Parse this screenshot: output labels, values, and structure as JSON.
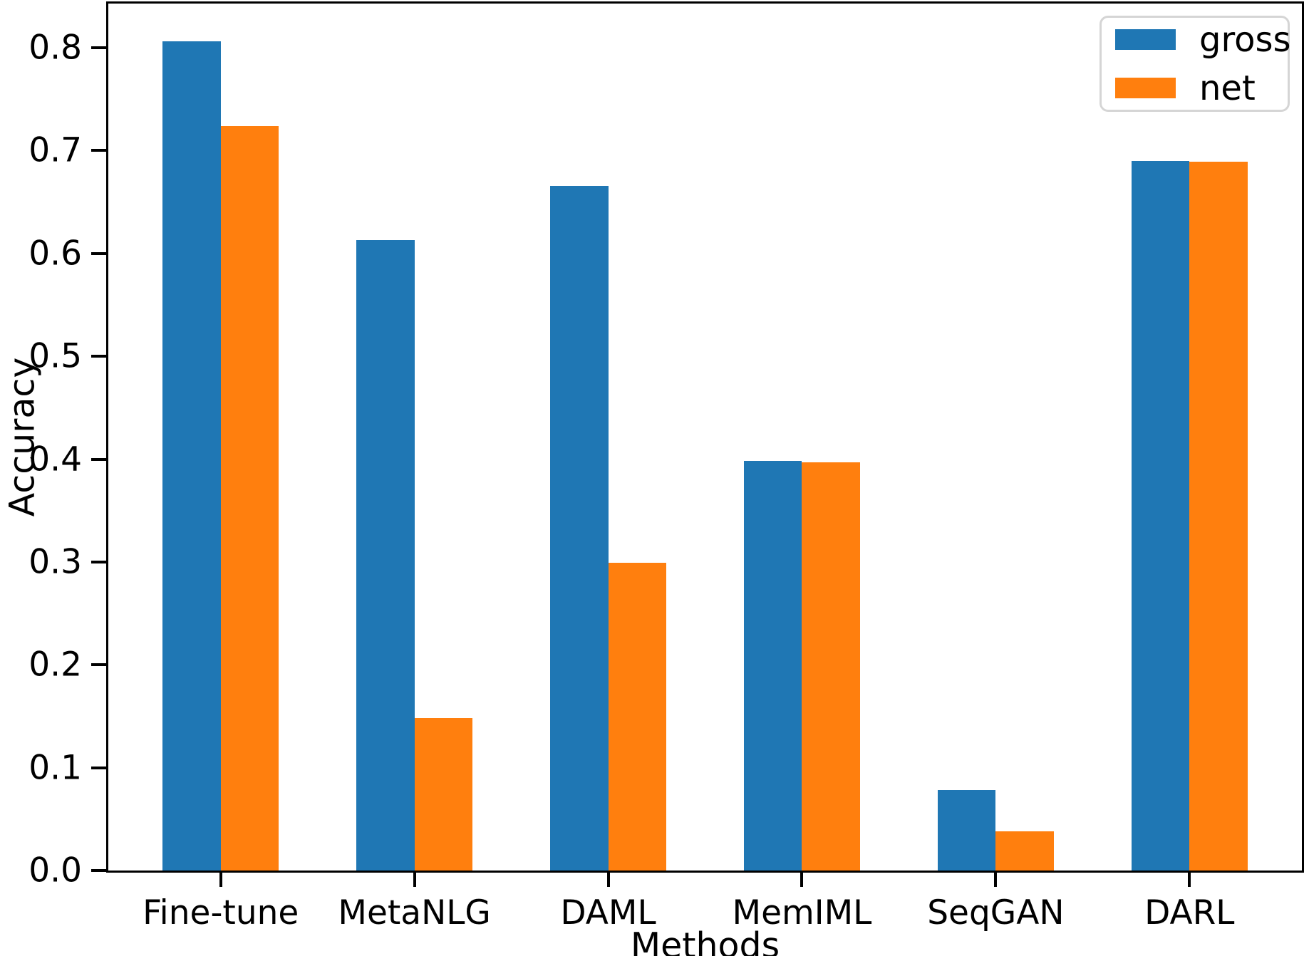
{
  "chart_data": {
    "type": "bar",
    "title": "",
    "categories": [
      "Fine-tune",
      "MetaNLG",
      "DAML",
      "MemIML",
      "SeqGAN",
      "DARL"
    ],
    "series": [
      {
        "name": "gross",
        "color": "#1f77b4",
        "values": [
          0.806,
          0.613,
          0.666,
          0.398,
          0.078,
          0.69
        ]
      },
      {
        "name": "net",
        "color": "#ff7f0e",
        "values": [
          0.724,
          0.148,
          0.299,
          0.397,
          0.038,
          0.689
        ]
      }
    ],
    "xlabel": "Methods",
    "ylabel": "Accuracy",
    "yticks": [
      0.0,
      0.1,
      0.2,
      0.3,
      0.4,
      0.5,
      0.6,
      0.7,
      0.8
    ],
    "ytick_labels": [
      "0.0",
      "0.1",
      "0.2",
      "0.3",
      "0.4",
      "0.5",
      "0.6",
      "0.7",
      "0.8"
    ],
    "ylim": [
      0,
      0.843
    ],
    "xlim_units": [
      -0.58,
      5.58
    ],
    "bar_width_units": 0.3,
    "grid": false,
    "legend": {
      "position": "upper right",
      "entries": [
        "gross",
        "net"
      ]
    },
    "colors": {
      "axis": "#000000",
      "legend_border": "#d5d5d5",
      "background": "#ffffff"
    }
  }
}
